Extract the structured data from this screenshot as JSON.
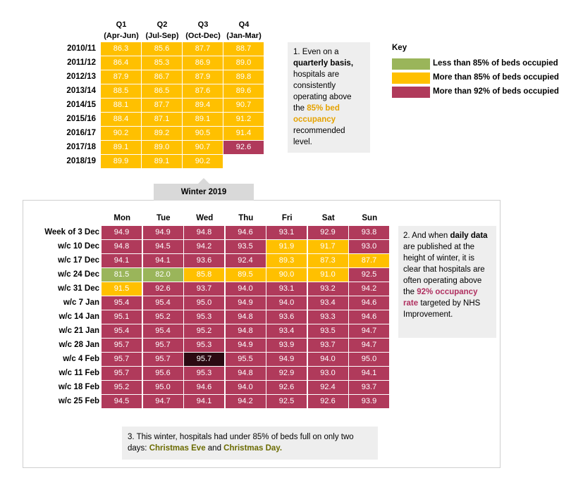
{
  "colors": {
    "green": "#9ab55a",
    "yellow": "#ffc000",
    "red": "#b03a5b",
    "dark": "#2b0a12",
    "note_bg": "#eeeeee",
    "tab_bg": "#d9d9d9"
  },
  "key": {
    "title": "Key",
    "items": [
      {
        "label": "Less than 85% of beds occupied",
        "color": "#9ab55a"
      },
      {
        "label": "More than 85% of beds occupied",
        "color": "#ffc000"
      },
      {
        "label": "More than 92% of beds occupied",
        "color": "#b03a5b"
      }
    ]
  },
  "quarterly": {
    "headers": [
      {
        "q": "Q1",
        "range": "(Apr-Jun)"
      },
      {
        "q": "Q2",
        "range": "(Jul-Sep)"
      },
      {
        "q": "Q3",
        "range": "(Oct-Dec)"
      },
      {
        "q": "Q4",
        "range": "(Jan-Mar)"
      }
    ],
    "rows": [
      {
        "label": "2010/11",
        "values": [
          "86.3",
          "85.6",
          "87.7",
          "88.7"
        ]
      },
      {
        "label": "2011/12",
        "values": [
          "86.4",
          "85.3",
          "86.9",
          "89.0"
        ]
      },
      {
        "label": "2012/13",
        "values": [
          "87.9",
          "86.7",
          "87.9",
          "89.8"
        ]
      },
      {
        "label": "2013/14",
        "values": [
          "88.5",
          "86.5",
          "87.6",
          "89.6"
        ]
      },
      {
        "label": "2014/15",
        "values": [
          "88.1",
          "87.7",
          "89.4",
          "90.7"
        ]
      },
      {
        "label": "2015/16",
        "values": [
          "88.4",
          "87.1",
          "89.1",
          "91.2"
        ]
      },
      {
        "label": "2016/17",
        "values": [
          "90.2",
          "89.2",
          "90.5",
          "91.4"
        ]
      },
      {
        "label": "2017/18",
        "values": [
          "89.1",
          "89.0",
          "90.7",
          "92.6"
        ]
      },
      {
        "label": "2018/19",
        "values": [
          "89.9",
          "89.1",
          "90.2",
          ""
        ]
      }
    ]
  },
  "note1": {
    "p1": "1. Even on a ",
    "b1": "quarterly basis,",
    "p2": " hospitals are consistently operating above the ",
    "hl": "85% bed occupancy",
    "p3": " recommended level."
  },
  "winter_tab": "Winter 2019",
  "daily": {
    "headers": [
      "Mon",
      "Tue",
      "Wed",
      "Thu",
      "Fri",
      "Sat",
      "Sun"
    ],
    "rows": [
      {
        "label": "Week of 3 Dec",
        "values": [
          "94.9",
          "94.9",
          "94.8",
          "94.6",
          "93.1",
          "92.9",
          "93.8"
        ]
      },
      {
        "label": "w/c 10 Dec",
        "values": [
          "94.8",
          "94.5",
          "94.2",
          "93.5",
          "91.9",
          "91.7",
          "93.0"
        ]
      },
      {
        "label": "w/c 17 Dec",
        "values": [
          "94.1",
          "94.1",
          "93.6",
          "92.4",
          "89.3",
          "87.3",
          "87.7"
        ]
      },
      {
        "label": "w/c 24 Dec",
        "values": [
          "81.5",
          "82.0",
          "85.8",
          "89.5",
          "90.0",
          "91.0",
          "92.5"
        ]
      },
      {
        "label": "w/c 31 Dec",
        "values": [
          "91.5",
          "92.6",
          "93.7",
          "94.0",
          "93.1",
          "93.2",
          "94.2"
        ]
      },
      {
        "label": "w/c 7 Jan",
        "values": [
          "95.4",
          "95.4",
          "95.0",
          "94.9",
          "94.0",
          "93.4",
          "94.6"
        ]
      },
      {
        "label": "w/c 14 Jan",
        "values": [
          "95.1",
          "95.2",
          "95.3",
          "94.8",
          "93.6",
          "93.3",
          "94.6"
        ]
      },
      {
        "label": "w/c 21 Jan",
        "values": [
          "95.4",
          "95.4",
          "95.2",
          "94.8",
          "93.4",
          "93.5",
          "94.7"
        ]
      },
      {
        "label": "w/c 28 Jan",
        "values": [
          "95.7",
          "95.7",
          "95.3",
          "94.9",
          "93.9",
          "93.7",
          "94.7"
        ]
      },
      {
        "label": "w/c 4 Feb",
        "values": [
          "95.7",
          "95.7",
          "95.7",
          "95.5",
          "94.9",
          "94.0",
          "95.0"
        ]
      },
      {
        "label": "w/c 11 Feb",
        "values": [
          "95.7",
          "95.6",
          "95.3",
          "94.8",
          "92.9",
          "93.0",
          "94.1"
        ]
      },
      {
        "label": "w/c 18 Feb",
        "values": [
          "95.2",
          "95.0",
          "94.6",
          "94.0",
          "92.6",
          "92.4",
          "93.7"
        ]
      },
      {
        "label": "w/c 25 Feb",
        "values": [
          "94.5",
          "94.7",
          "94.1",
          "94.2",
          "92.5",
          "92.6",
          "93.9"
        ]
      }
    ]
  },
  "note2": {
    "p1": "2. And when ",
    "b1": "daily data",
    "p2": " are published at the height of winter, it is clear that hospitals are often operating above the ",
    "hl": "92% occupancy rate",
    "p3": " targeted by NHS Improvement."
  },
  "note3": {
    "p1": "3. This winter, hospitals had under 85% of beds full on only two days: ",
    "hl1": "Christmas Eve",
    "p2": " and ",
    "hl2": "Christmas Day."
  },
  "chart_data": [
    {
      "type": "heatmap",
      "title": "",
      "columns": [
        "Q1 (Apr-Jun)",
        "Q2 (Jul-Sep)",
        "Q3 (Oct-Dec)",
        "Q4 (Jan-Mar)"
      ],
      "rows": [
        "2010/11",
        "2011/12",
        "2012/13",
        "2013/14",
        "2014/15",
        "2015/16",
        "2016/17",
        "2017/18",
        "2018/19"
      ],
      "values": [
        [
          86.3,
          85.6,
          87.7,
          88.7
        ],
        [
          86.4,
          85.3,
          86.9,
          89.0
        ],
        [
          87.9,
          86.7,
          87.9,
          89.8
        ],
        [
          88.5,
          86.5,
          87.6,
          89.6
        ],
        [
          88.1,
          87.7,
          89.4,
          90.7
        ],
        [
          88.4,
          87.1,
          89.1,
          91.2
        ],
        [
          90.2,
          89.2,
          90.5,
          91.4
        ],
        [
          89.1,
          89.0,
          90.7,
          92.6
        ],
        [
          89.9,
          89.1,
          90.2,
          null
        ]
      ]
    },
    {
      "type": "heatmap",
      "title": "Winter 2019",
      "columns": [
        "Mon",
        "Tue",
        "Wed",
        "Thu",
        "Fri",
        "Sat",
        "Sun"
      ],
      "rows": [
        "Week of 3 Dec",
        "w/c 10 Dec",
        "w/c 17 Dec",
        "w/c 24 Dec",
        "w/c 31 Dec",
        "w/c 7 Jan",
        "w/c 14 Jan",
        "w/c 21 Jan",
        "w/c 28 Jan",
        "w/c 4 Feb",
        "w/c 11 Feb",
        "w/c 18 Feb",
        "w/c 25 Feb"
      ],
      "values": [
        [
          94.9,
          94.9,
          94.8,
          94.6,
          93.1,
          92.9,
          93.8
        ],
        [
          94.8,
          94.5,
          94.2,
          93.5,
          91.9,
          91.7,
          93.0
        ],
        [
          94.1,
          94.1,
          93.6,
          92.4,
          89.3,
          87.3,
          87.7
        ],
        [
          81.5,
          82.0,
          85.8,
          89.5,
          90.0,
          91.0,
          92.5
        ],
        [
          91.5,
          92.6,
          93.7,
          94.0,
          93.1,
          93.2,
          94.2
        ],
        [
          95.4,
          95.4,
          95.0,
          94.9,
          94.0,
          93.4,
          94.6
        ],
        [
          95.1,
          95.2,
          95.3,
          94.8,
          93.6,
          93.3,
          94.6
        ],
        [
          95.4,
          95.4,
          95.2,
          94.8,
          93.4,
          93.5,
          94.7
        ],
        [
          95.7,
          95.7,
          95.3,
          94.9,
          93.9,
          93.7,
          94.7
        ],
        [
          95.7,
          95.7,
          95.7,
          95.5,
          94.9,
          94.0,
          95.0
        ],
        [
          95.7,
          95.6,
          95.3,
          94.8,
          92.9,
          93.0,
          94.1
        ],
        [
          95.2,
          95.0,
          94.6,
          94.0,
          92.6,
          92.4,
          93.7
        ],
        [
          94.5,
          94.7,
          94.1,
          94.2,
          92.5,
          92.6,
          93.9
        ]
      ]
    }
  ]
}
